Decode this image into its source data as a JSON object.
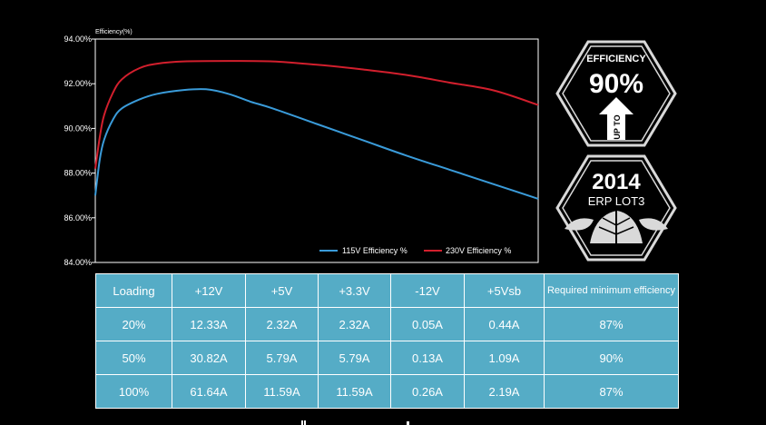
{
  "chart_data": {
    "type": "line",
    "title": "",
    "ylabel": "Efficiency(%)",
    "xlabel": "",
    "ylim": [
      84,
      94
    ],
    "xlim": [
      0,
      100
    ],
    "yticks": [
      "84.00%",
      "86.00%",
      "88.00%",
      "90.00%",
      "92.00%",
      "94.00%"
    ],
    "ytick_values": [
      84,
      86,
      88,
      90,
      92,
      94
    ],
    "grid": false,
    "legend_position": "bottom-right",
    "series": [
      {
        "name": "115V Efficiency %",
        "color": "#3a9bd9",
        "x": [
          0,
          1,
          2,
          4,
          6,
          10,
          14,
          20,
          25,
          30,
          35,
          40,
          50,
          60,
          70,
          80,
          90,
          100
        ],
        "y": [
          87.0,
          88.6,
          89.5,
          90.4,
          90.9,
          91.3,
          91.55,
          91.72,
          91.75,
          91.55,
          91.2,
          90.9,
          90.2,
          89.5,
          88.8,
          88.15,
          87.5,
          86.85
        ]
      },
      {
        "name": "230V Efficiency %",
        "color": "#d21f2d",
        "x": [
          0,
          1,
          2,
          4,
          6,
          10,
          14,
          20,
          30,
          40,
          50,
          60,
          70,
          80,
          90,
          100
        ],
        "y": [
          88.2,
          89.6,
          90.6,
          91.6,
          92.2,
          92.7,
          92.9,
          93.0,
          93.02,
          93.0,
          92.85,
          92.65,
          92.4,
          92.05,
          91.7,
          91.05
        ]
      }
    ]
  },
  "badges": {
    "efficiency": {
      "title": "EFFICIENCY",
      "value": "90%",
      "arrow_text": "UP TO"
    },
    "erp": {
      "year": "2014",
      "text": "ERP LOT3"
    }
  },
  "table": {
    "headers": [
      "Loading",
      "+12V",
      "+5V",
      "+3.3V",
      "-12V",
      "+5Vsb",
      "Required minimum efficiency"
    ],
    "rows": [
      [
        "20%",
        "12.33A",
        "2.32A",
        "2.32A",
        "0.05A",
        "0.44A",
        "87%"
      ],
      [
        "50%",
        "30.82A",
        "5.79A",
        "5.79A",
        "0.13A",
        "1.09A",
        "90%"
      ],
      [
        "100%",
        "61.64A",
        "11.59A",
        "11.59A",
        "0.26A",
        "2.19A",
        "87%"
      ]
    ]
  },
  "colors": {
    "background": "#000000",
    "table_fill": "#55acc6",
    "table_border": "#ffffff",
    "badge": "#d9d9d9"
  }
}
